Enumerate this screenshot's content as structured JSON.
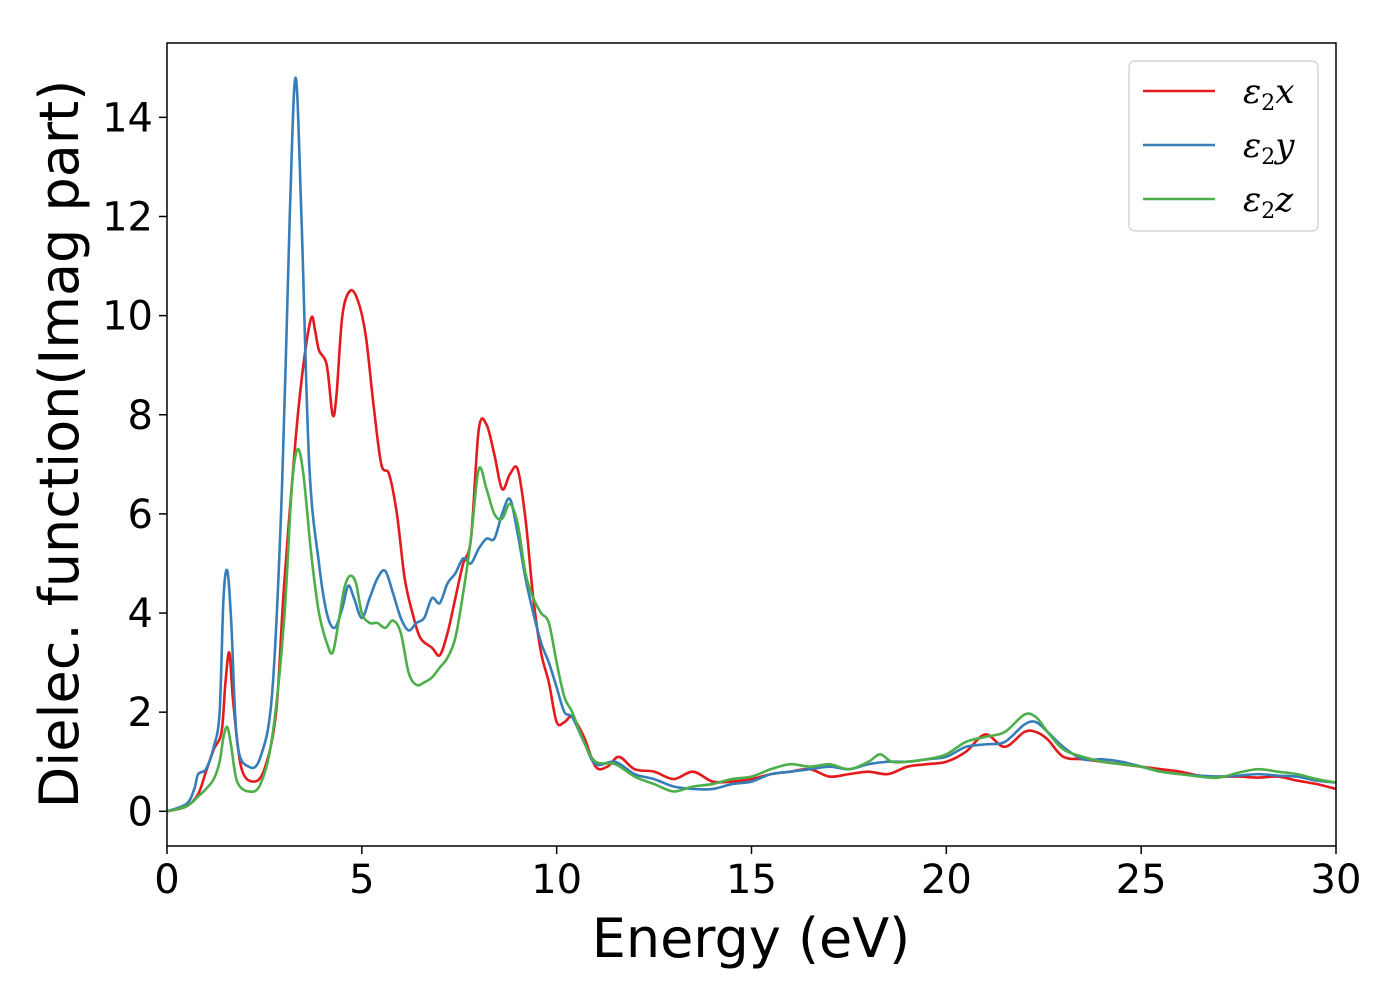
{
  "chart_data": {
    "type": "line",
    "xlabel": "Energy (eV)",
    "ylabel": "Dielec. function(Imag part)",
    "xlim": [
      0,
      30
    ],
    "ylim": [
      -0.7,
      15.5
    ],
    "xticks": [
      0,
      5,
      10,
      15,
      20,
      25,
      30
    ],
    "yticks": [
      0,
      2,
      4,
      6,
      8,
      10,
      12,
      14
    ],
    "grid": false,
    "legend_position": "top-right",
    "series": [
      {
        "name": "ε2x",
        "symbol": "ε",
        "subscript": "2",
        "suffix": "x",
        "color": "#e41a1c",
        "points": [
          [
            0,
            0
          ],
          [
            0.5,
            0.1
          ],
          [
            0.8,
            0.35
          ],
          [
            1.0,
            0.8
          ],
          [
            1.2,
            1.25
          ],
          [
            1.4,
            1.6
          ],
          [
            1.5,
            2.6
          ],
          [
            1.6,
            3.2
          ],
          [
            1.7,
            2.2
          ],
          [
            1.9,
            0.9
          ],
          [
            2.2,
            0.6
          ],
          [
            2.5,
            0.85
          ],
          [
            2.8,
            2.0
          ],
          [
            3.0,
            4.5
          ],
          [
            3.3,
            7.5
          ],
          [
            3.5,
            9.0
          ],
          [
            3.7,
            9.95
          ],
          [
            3.8,
            9.7
          ],
          [
            3.9,
            9.3
          ],
          [
            4.1,
            9.0
          ],
          [
            4.25,
            8.0
          ],
          [
            4.35,
            8.4
          ],
          [
            4.5,
            10.0
          ],
          [
            4.7,
            10.5
          ],
          [
            4.9,
            10.3
          ],
          [
            5.1,
            9.6
          ],
          [
            5.3,
            8.2
          ],
          [
            5.5,
            7.0
          ],
          [
            5.7,
            6.8
          ],
          [
            5.9,
            6.0
          ],
          [
            6.1,
            4.7
          ],
          [
            6.3,
            4.0
          ],
          [
            6.5,
            3.5
          ],
          [
            6.8,
            3.3
          ],
          [
            7.0,
            3.15
          ],
          [
            7.2,
            3.6
          ],
          [
            7.4,
            4.3
          ],
          [
            7.6,
            5.0
          ],
          [
            7.8,
            5.5
          ],
          [
            8.0,
            7.7
          ],
          [
            8.2,
            7.8
          ],
          [
            8.4,
            7.2
          ],
          [
            8.6,
            6.5
          ],
          [
            8.8,
            6.8
          ],
          [
            9.0,
            6.9
          ],
          [
            9.2,
            5.9
          ],
          [
            9.4,
            4.3
          ],
          [
            9.6,
            3.2
          ],
          [
            9.8,
            2.6
          ],
          [
            10.0,
            1.8
          ],
          [
            10.2,
            1.8
          ],
          [
            10.4,
            1.9
          ],
          [
            10.7,
            1.5
          ],
          [
            11.0,
            0.9
          ],
          [
            11.3,
            0.9
          ],
          [
            11.6,
            1.1
          ],
          [
            12.0,
            0.85
          ],
          [
            12.5,
            0.8
          ],
          [
            13.0,
            0.65
          ],
          [
            13.5,
            0.8
          ],
          [
            14.0,
            0.6
          ],
          [
            14.5,
            0.6
          ],
          [
            15.0,
            0.65
          ],
          [
            15.5,
            0.75
          ],
          [
            16.0,
            0.8
          ],
          [
            16.5,
            0.85
          ],
          [
            17.0,
            0.7
          ],
          [
            17.5,
            0.75
          ],
          [
            18.0,
            0.8
          ],
          [
            18.5,
            0.75
          ],
          [
            19.0,
            0.9
          ],
          [
            19.5,
            0.95
          ],
          [
            20.0,
            1.0
          ],
          [
            20.5,
            1.2
          ],
          [
            21.0,
            1.55
          ],
          [
            21.5,
            1.3
          ],
          [
            22.0,
            1.6
          ],
          [
            22.3,
            1.6
          ],
          [
            22.6,
            1.45
          ],
          [
            23.0,
            1.1
          ],
          [
            23.5,
            1.05
          ],
          [
            24.0,
            1.0
          ],
          [
            24.5,
            0.95
          ],
          [
            25.0,
            0.9
          ],
          [
            25.5,
            0.85
          ],
          [
            26.0,
            0.8
          ],
          [
            26.5,
            0.72
          ],
          [
            27.0,
            0.7
          ],
          [
            27.5,
            0.7
          ],
          [
            28.0,
            0.68
          ],
          [
            28.5,
            0.7
          ],
          [
            29.0,
            0.62
          ],
          [
            29.5,
            0.55
          ],
          [
            30.0,
            0.45
          ]
        ]
      },
      {
        "name": "ε2y",
        "symbol": "ε",
        "subscript": "2",
        "suffix": "y",
        "color": "#377eb8",
        "points": [
          [
            0,
            0
          ],
          [
            0.5,
            0.15
          ],
          [
            0.7,
            0.45
          ],
          [
            0.8,
            0.75
          ],
          [
            1.0,
            0.85
          ],
          [
            1.2,
            1.3
          ],
          [
            1.35,
            2.0
          ],
          [
            1.45,
            4.3
          ],
          [
            1.55,
            4.85
          ],
          [
            1.65,
            3.8
          ],
          [
            1.8,
            1.4
          ],
          [
            2.1,
            0.9
          ],
          [
            2.4,
            1.1
          ],
          [
            2.7,
            2.4
          ],
          [
            2.95,
            6.5
          ],
          [
            3.15,
            12.0
          ],
          [
            3.3,
            14.8
          ],
          [
            3.45,
            12.0
          ],
          [
            3.65,
            7.0
          ],
          [
            3.9,
            5.0
          ],
          [
            4.1,
            4.0
          ],
          [
            4.3,
            3.7
          ],
          [
            4.5,
            4.1
          ],
          [
            4.65,
            4.55
          ],
          [
            4.8,
            4.3
          ],
          [
            5.0,
            3.9
          ],
          [
            5.2,
            4.3
          ],
          [
            5.4,
            4.7
          ],
          [
            5.6,
            4.85
          ],
          [
            5.8,
            4.4
          ],
          [
            6.0,
            3.9
          ],
          [
            6.2,
            3.65
          ],
          [
            6.4,
            3.8
          ],
          [
            6.6,
            3.9
          ],
          [
            6.8,
            4.3
          ],
          [
            7.0,
            4.2
          ],
          [
            7.2,
            4.6
          ],
          [
            7.4,
            4.8
          ],
          [
            7.6,
            5.1
          ],
          [
            7.8,
            5.0
          ],
          [
            8.0,
            5.3
          ],
          [
            8.2,
            5.5
          ],
          [
            8.4,
            5.5
          ],
          [
            8.6,
            6.0
          ],
          [
            8.8,
            6.3
          ],
          [
            9.0,
            5.6
          ],
          [
            9.2,
            4.7
          ],
          [
            9.4,
            4.0
          ],
          [
            9.6,
            3.4
          ],
          [
            9.8,
            3.0
          ],
          [
            10.0,
            2.5
          ],
          [
            10.2,
            2.0
          ],
          [
            10.4,
            1.9
          ],
          [
            10.7,
            1.4
          ],
          [
            11.0,
            0.95
          ],
          [
            11.5,
            1.0
          ],
          [
            12.0,
            0.75
          ],
          [
            12.5,
            0.65
          ],
          [
            13.0,
            0.5
          ],
          [
            13.5,
            0.45
          ],
          [
            14.0,
            0.45
          ],
          [
            14.5,
            0.55
          ],
          [
            15.0,
            0.6
          ],
          [
            15.5,
            0.75
          ],
          [
            16.0,
            0.8
          ],
          [
            16.5,
            0.85
          ],
          [
            17.0,
            0.9
          ],
          [
            17.5,
            0.85
          ],
          [
            18.0,
            0.95
          ],
          [
            18.5,
            1.0
          ],
          [
            19.0,
            1.0
          ],
          [
            19.5,
            1.05
          ],
          [
            20.0,
            1.1
          ],
          [
            20.5,
            1.3
          ],
          [
            21.0,
            1.35
          ],
          [
            21.5,
            1.4
          ],
          [
            22.0,
            1.75
          ],
          [
            22.3,
            1.8
          ],
          [
            22.6,
            1.6
          ],
          [
            23.0,
            1.3
          ],
          [
            23.5,
            1.05
          ],
          [
            24.0,
            1.05
          ],
          [
            24.5,
            1.0
          ],
          [
            25.0,
            0.9
          ],
          [
            25.5,
            0.8
          ],
          [
            26.0,
            0.75
          ],
          [
            26.5,
            0.72
          ],
          [
            27.0,
            0.7
          ],
          [
            27.5,
            0.72
          ],
          [
            28.0,
            0.75
          ],
          [
            28.5,
            0.72
          ],
          [
            29.0,
            0.7
          ],
          [
            29.5,
            0.62
          ],
          [
            30.0,
            0.58
          ]
        ]
      },
      {
        "name": "ε2z",
        "symbol": "ε",
        "subscript": "2",
        "suffix": "z",
        "color": "#4daf4a",
        "points": [
          [
            0,
            0
          ],
          [
            0.5,
            0.1
          ],
          [
            0.8,
            0.3
          ],
          [
            1.0,
            0.45
          ],
          [
            1.2,
            0.65
          ],
          [
            1.35,
            1.0
          ],
          [
            1.45,
            1.5
          ],
          [
            1.55,
            1.7
          ],
          [
            1.65,
            1.3
          ],
          [
            1.8,
            0.6
          ],
          [
            2.1,
            0.4
          ],
          [
            2.4,
            0.55
          ],
          [
            2.7,
            1.5
          ],
          [
            3.0,
            3.8
          ],
          [
            3.2,
            6.5
          ],
          [
            3.35,
            7.3
          ],
          [
            3.5,
            6.8
          ],
          [
            3.7,
            5.2
          ],
          [
            3.9,
            4.0
          ],
          [
            4.1,
            3.4
          ],
          [
            4.25,
            3.2
          ],
          [
            4.4,
            3.8
          ],
          [
            4.55,
            4.5
          ],
          [
            4.7,
            4.75
          ],
          [
            4.85,
            4.6
          ],
          [
            5.0,
            4.0
          ],
          [
            5.2,
            3.8
          ],
          [
            5.4,
            3.8
          ],
          [
            5.6,
            3.7
          ],
          [
            5.8,
            3.85
          ],
          [
            6.0,
            3.6
          ],
          [
            6.2,
            2.8
          ],
          [
            6.4,
            2.55
          ],
          [
            6.6,
            2.6
          ],
          [
            6.8,
            2.7
          ],
          [
            7.0,
            2.9
          ],
          [
            7.2,
            3.1
          ],
          [
            7.4,
            3.5
          ],
          [
            7.6,
            4.4
          ],
          [
            7.8,
            5.5
          ],
          [
            8.0,
            6.9
          ],
          [
            8.2,
            6.5
          ],
          [
            8.4,
            6.0
          ],
          [
            8.6,
            5.9
          ],
          [
            8.8,
            6.2
          ],
          [
            9.0,
            5.8
          ],
          [
            9.2,
            4.8
          ],
          [
            9.4,
            4.3
          ],
          [
            9.6,
            4.0
          ],
          [
            9.8,
            3.8
          ],
          [
            10.0,
            3.0
          ],
          [
            10.2,
            2.3
          ],
          [
            10.4,
            2.0
          ],
          [
            10.7,
            1.4
          ],
          [
            11.0,
            1.0
          ],
          [
            11.5,
            0.95
          ],
          [
            12.0,
            0.7
          ],
          [
            12.5,
            0.55
          ],
          [
            13.0,
            0.4
          ],
          [
            13.5,
            0.5
          ],
          [
            14.0,
            0.55
          ],
          [
            14.5,
            0.65
          ],
          [
            15.0,
            0.7
          ],
          [
            15.5,
            0.85
          ],
          [
            16.0,
            0.95
          ],
          [
            16.5,
            0.9
          ],
          [
            17.0,
            0.95
          ],
          [
            17.5,
            0.85
          ],
          [
            18.0,
            1.0
          ],
          [
            18.3,
            1.15
          ],
          [
            18.6,
            1.0
          ],
          [
            19.0,
            1.0
          ],
          [
            19.5,
            1.05
          ],
          [
            20.0,
            1.15
          ],
          [
            20.5,
            1.4
          ],
          [
            21.0,
            1.5
          ],
          [
            21.5,
            1.6
          ],
          [
            22.0,
            1.95
          ],
          [
            22.3,
            1.9
          ],
          [
            22.6,
            1.6
          ],
          [
            23.0,
            1.25
          ],
          [
            23.5,
            1.1
          ],
          [
            24.0,
            1.0
          ],
          [
            24.5,
            0.95
          ],
          [
            25.0,
            0.9
          ],
          [
            25.5,
            0.8
          ],
          [
            26.0,
            0.75
          ],
          [
            26.5,
            0.7
          ],
          [
            27.0,
            0.68
          ],
          [
            27.5,
            0.78
          ],
          [
            28.0,
            0.85
          ],
          [
            28.5,
            0.8
          ],
          [
            29.0,
            0.75
          ],
          [
            29.5,
            0.65
          ],
          [
            30.0,
            0.58
          ]
        ]
      }
    ]
  }
}
